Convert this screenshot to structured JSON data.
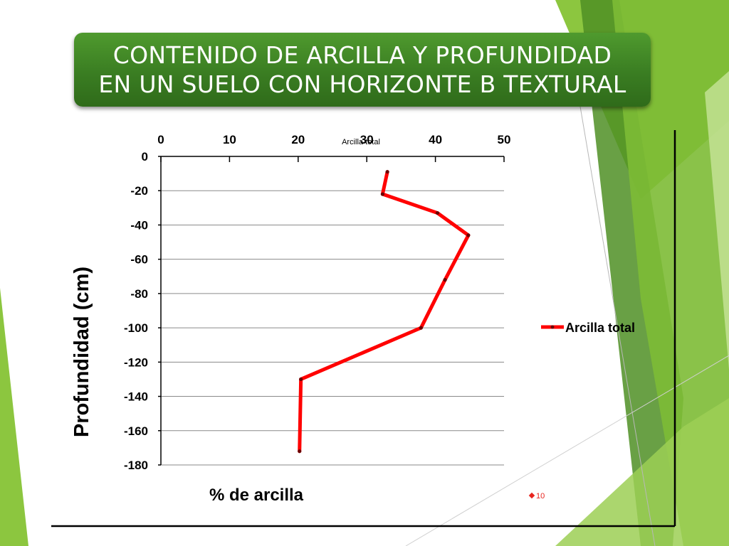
{
  "slide": {
    "title_line1": "CONTENIDO DE ARCILLA Y PROFUNDIDAD",
    "title_line2": "EN UN SUELO CON HORIZONTE B TEXTURAL",
    "page_number": "10",
    "accent_colors": [
      "#8cc63f",
      "#6aaa2f",
      "#4f8f24",
      "#c7e39a"
    ],
    "title_color": "#3f8427"
  },
  "chart_data": {
    "type": "line",
    "title": "",
    "xlabel": "% de arcilla",
    "ylabel": "Profundidad (cm)",
    "series_label": "Arcilla total",
    "xlim": [
      0,
      50
    ],
    "ylim": [
      -180,
      0
    ],
    "x_ticks": [
      "0",
      "10",
      "20",
      "30",
      "40",
      "50"
    ],
    "y_ticks": [
      "0",
      "-20",
      "-40",
      "-60",
      "-80",
      "-100",
      "-120",
      "-140",
      "-160",
      "-180"
    ],
    "grid": "horizontal",
    "x_axis_position": "top",
    "legend_position": "right",
    "series": [
      {
        "name": "Arcilla total",
        "color": "#ff0000",
        "points": [
          {
            "x": 33,
            "y": -9
          },
          {
            "x": 32.3,
            "y": -22
          },
          {
            "x": 40.3,
            "y": -33
          },
          {
            "x": 44.8,
            "y": -46
          },
          {
            "x": 41.4,
            "y": -72
          },
          {
            "x": 37.9,
            "y": -100
          },
          {
            "x": 20.4,
            "y": -130
          },
          {
            "x": 20.2,
            "y": -172
          }
        ]
      }
    ]
  }
}
